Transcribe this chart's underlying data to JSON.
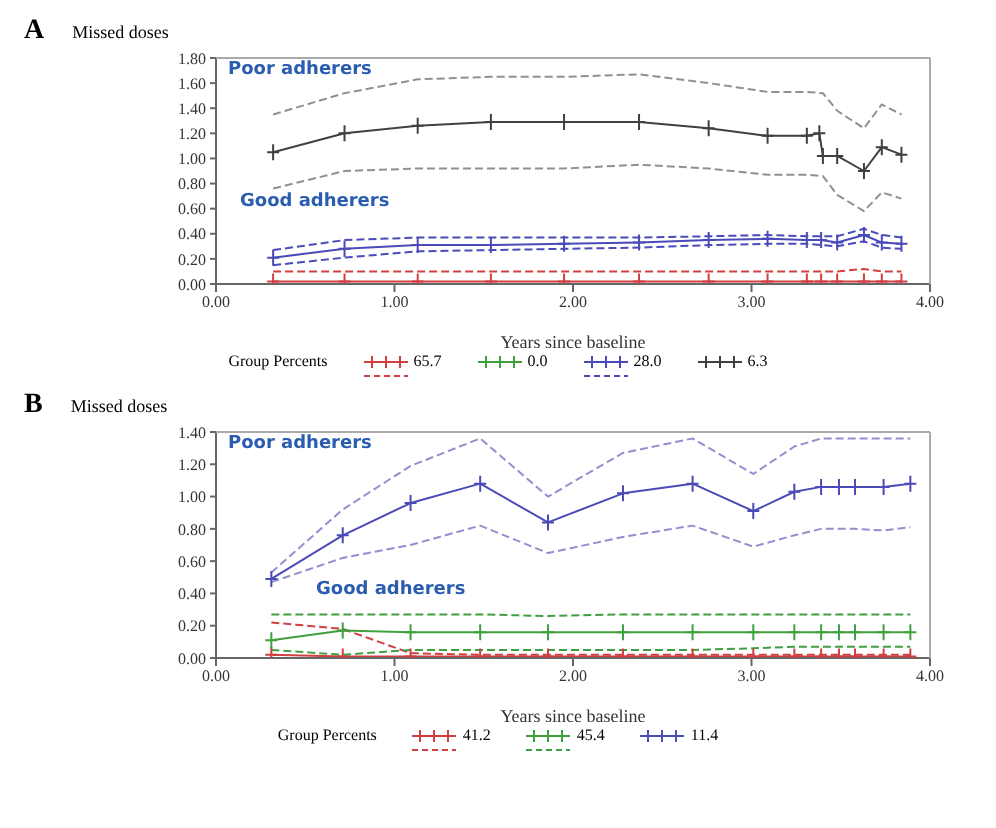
{
  "chart_data": [
    {
      "type": "line",
      "title": "A",
      "ylabel": "Missed doses",
      "xlabel": "Years since baseline",
      "legend_title": "Group Percents",
      "legend": "bottom",
      "annotations": [
        "Poor adherers",
        "Good adherers"
      ],
      "xlim": [
        0,
        4
      ],
      "xticks": [
        {
          "value": 0,
          "label": "0.00"
        },
        {
          "value": 1,
          "label": "1.00"
        },
        {
          "value": 2,
          "label": "2.00"
        },
        {
          "value": 3,
          "label": "3.00"
        },
        {
          "value": 4,
          "label": "4.00"
        }
      ],
      "ylim": [
        0,
        1.8
      ],
      "yticks": [
        {
          "value": 0,
          "label": "0.00"
        },
        {
          "value": 0.2,
          "label": "0.20"
        },
        {
          "value": 0.4,
          "label": "0.40"
        },
        {
          "value": 0.6,
          "label": "0.60"
        },
        {
          "value": 0.8,
          "label": "0.80"
        },
        {
          "value": 1,
          "label": "1.00"
        },
        {
          "value": 1.2,
          "label": "1.20"
        },
        {
          "value": 1.4,
          "label": "1.40"
        },
        {
          "value": 1.6,
          "label": "1.60"
        },
        {
          "value": 1.8,
          "label": "1.80"
        }
      ],
      "series": [
        {
          "name": "65.7",
          "color": "#d04040",
          "marker": "cross",
          "line_style": "solid",
          "x": [
            0.32,
            0.72,
            1.13,
            1.54,
            1.95,
            2.37,
            2.76,
            3.09,
            3.31,
            3.39,
            3.48,
            3.63,
            3.73,
            3.84
          ],
          "values": [
            0.02,
            0.02,
            0.02,
            0.02,
            0.02,
            0.02,
            0.02,
            0.02,
            0.02,
            0.02,
            0.02,
            0.02,
            0.02,
            0.02
          ]
        },
        {
          "color": "#d04040",
          "marker": "none",
          "line_style": "dashed",
          "x": [
            0.32,
            0.72,
            1.13,
            1.54,
            1.95,
            2.37,
            2.76,
            3.09,
            3.31,
            3.39,
            3.48,
            3.63,
            3.73,
            3.84
          ],
          "values": [
            0.1,
            0.1,
            0.1,
            0.1,
            0.1,
            0.1,
            0.1,
            0.1,
            0.1,
            0.1,
            0.1,
            0.12,
            0.1,
            0.1
          ]
        },
        {
          "name": "0.0",
          "color": "#40a040",
          "marker": "cross",
          "line_style": "solid"
        },
        {
          "name": "28.0",
          "color": "#4a4ab8",
          "marker": "cross",
          "line_style": "solid",
          "x": [
            0.32,
            0.72,
            1.13,
            1.54,
            1.95,
            2.37,
            2.76,
            3.09,
            3.31,
            3.39,
            3.48,
            3.63,
            3.73,
            3.84
          ],
          "values": [
            0.21,
            0.28,
            0.31,
            0.31,
            0.32,
            0.33,
            0.35,
            0.36,
            0.35,
            0.35,
            0.33,
            0.39,
            0.33,
            0.32
          ]
        },
        {
          "color": "#4a4ab8",
          "marker": "none",
          "line_style": "dashed",
          "x": [
            0.32,
            0.72,
            1.13,
            1.54,
            1.95,
            2.37,
            2.76,
            3.09,
            3.31,
            3.39,
            3.48,
            3.63,
            3.73,
            3.84
          ],
          "values": [
            0.27,
            0.35,
            0.37,
            0.37,
            0.37,
            0.37,
            0.38,
            0.39,
            0.38,
            0.38,
            0.38,
            0.44,
            0.39,
            0.37
          ]
        },
        {
          "color": "#4a4ab8",
          "marker": "none",
          "line_style": "dashed",
          "x": [
            0.32,
            0.72,
            1.13,
            1.54,
            1.95,
            2.37,
            2.76,
            3.09,
            3.31,
            3.39,
            3.48,
            3.63,
            3.73,
            3.84
          ],
          "values": [
            0.15,
            0.21,
            0.26,
            0.27,
            0.28,
            0.29,
            0.31,
            0.32,
            0.32,
            0.31,
            0.3,
            0.34,
            0.29,
            0.28
          ]
        },
        {
          "name": "6.3",
          "color": "#404040",
          "marker": "cross",
          "line_style": "solid",
          "x": [
            0.32,
            0.72,
            1.13,
            1.54,
            1.95,
            2.37,
            2.76,
            3.09,
            3.31,
            3.38,
            3.4,
            3.48,
            3.63,
            3.73,
            3.84
          ],
          "values": [
            1.05,
            1.2,
            1.26,
            1.29,
            1.29,
            1.29,
            1.24,
            1.18,
            1.18,
            1.2,
            1.02,
            1.02,
            0.9,
            1.09,
            1.03
          ]
        },
        {
          "color": "#909090",
          "marker": "none",
          "line_style": "dashed",
          "x": [
            0.32,
            0.72,
            1.13,
            1.54,
            1.95,
            2.37,
            2.76,
            3.09,
            3.31,
            3.4,
            3.48,
            3.63,
            3.73,
            3.84
          ],
          "values": [
            1.35,
            1.52,
            1.63,
            1.65,
            1.65,
            1.67,
            1.6,
            1.53,
            1.53,
            1.52,
            1.38,
            1.24,
            1.43,
            1.35
          ]
        },
        {
          "color": "#909090",
          "marker": "none",
          "line_style": "dashed",
          "x": [
            0.32,
            0.72,
            1.13,
            1.54,
            1.95,
            2.37,
            2.76,
            3.09,
            3.31,
            3.4,
            3.48,
            3.63,
            3.73,
            3.84
          ],
          "values": [
            0.76,
            0.9,
            0.92,
            0.92,
            0.92,
            0.95,
            0.92,
            0.87,
            0.87,
            0.86,
            0.71,
            0.58,
            0.73,
            0.68
          ]
        }
      ]
    },
    {
      "type": "line",
      "title": "B",
      "ylabel": "Missed doses",
      "xlabel": "Years since baseline",
      "legend_title": "Group Percents",
      "legend": "bottom",
      "annotations": [
        "Poor adherers",
        "Good adherers"
      ],
      "xlim": [
        0,
        4
      ],
      "xticks": [
        {
          "value": 0,
          "label": "0.00"
        },
        {
          "value": 1,
          "label": "1.00"
        },
        {
          "value": 2,
          "label": "2.00"
        },
        {
          "value": 3,
          "label": "3.00"
        },
        {
          "value": 4,
          "label": "4.00"
        }
      ],
      "ylim": [
        0,
        1.4
      ],
      "yticks": [
        {
          "value": 0,
          "label": "0.00"
        },
        {
          "value": 0.2,
          "label": "0.20"
        },
        {
          "value": 0.4,
          "label": "0.40"
        },
        {
          "value": 0.6,
          "label": "0.60"
        },
        {
          "value": 0.8,
          "label": "0.80"
        },
        {
          "value": 1,
          "label": "1.00"
        },
        {
          "value": 1.2,
          "label": "1.20"
        },
        {
          "value": 1.4,
          "label": "1.40"
        }
      ],
      "series": [
        {
          "name": "41.2",
          "color": "#d04040",
          "marker": "cross",
          "line_style": "solid",
          "x": [
            0.31,
            0.71,
            1.09,
            1.48,
            1.86,
            2.28,
            2.67,
            3.01,
            3.24,
            3.39,
            3.49,
            3.58,
            3.74,
            3.89
          ],
          "values": [
            0.02,
            0.01,
            0.01,
            0.01,
            0.01,
            0.01,
            0.01,
            0.01,
            0.01,
            0.01,
            0.01,
            0.01,
            0.01,
            0.01
          ]
        },
        {
          "color": "#d04040",
          "marker": "none",
          "line_style": "dashed",
          "x": [
            0.31,
            0.71,
            1.09,
            1.48,
            1.86,
            2.28,
            2.67,
            3.01,
            3.24,
            3.39,
            3.49,
            3.58,
            3.74,
            3.89
          ],
          "values": [
            0.22,
            0.18,
            0.03,
            0.02,
            0.02,
            0.02,
            0.02,
            0.02,
            0.02,
            0.02,
            0.02,
            0.02,
            0.02,
            0.02
          ]
        },
        {
          "name": "45.4",
          "color": "#40a040",
          "marker": "cross",
          "line_style": "solid",
          "x": [
            0.31,
            0.71,
            1.09,
            1.48,
            1.86,
            2.28,
            2.67,
            3.01,
            3.24,
            3.39,
            3.49,
            3.58,
            3.74,
            3.89
          ],
          "values": [
            0.11,
            0.17,
            0.16,
            0.16,
            0.16,
            0.16,
            0.16,
            0.16,
            0.16,
            0.16,
            0.16,
            0.16,
            0.16,
            0.16
          ]
        },
        {
          "color": "#40a040",
          "marker": "none",
          "line_style": "dashed",
          "x": [
            0.31,
            0.71,
            1.09,
            1.48,
            1.86,
            2.28,
            2.67,
            3.01,
            3.24,
            3.39,
            3.49,
            3.58,
            3.74,
            3.89
          ],
          "values": [
            0.27,
            0.27,
            0.27,
            0.27,
            0.26,
            0.27,
            0.27,
            0.27,
            0.27,
            0.27,
            0.27,
            0.27,
            0.27,
            0.27
          ]
        },
        {
          "color": "#40a040",
          "marker": "none",
          "line_style": "dashed",
          "x": [
            0.31,
            0.71,
            1.09,
            1.48,
            1.86,
            2.28,
            2.67,
            3.01,
            3.24,
            3.39,
            3.49,
            3.58,
            3.74,
            3.89
          ],
          "values": [
            0.05,
            0.02,
            0.05,
            0.05,
            0.05,
            0.05,
            0.05,
            0.06,
            0.07,
            0.07,
            0.07,
            0.07,
            0.07,
            0.07
          ]
        },
        {
          "name": "11.4",
          "color": "#4a4ab8",
          "marker": "cross",
          "line_style": "solid",
          "x": [
            0.31,
            0.71,
            1.09,
            1.48,
            1.86,
            2.28,
            2.67,
            3.01,
            3.24,
            3.39,
            3.49,
            3.58,
            3.74,
            3.89
          ],
          "values": [
            0.49,
            0.76,
            0.96,
            1.08,
            0.84,
            1.02,
            1.08,
            0.91,
            1.03,
            1.06,
            1.06,
            1.06,
            1.06,
            1.08
          ]
        },
        {
          "color": "#9090d0",
          "marker": "none",
          "line_style": "dashed",
          "x": [
            0.31,
            0.71,
            1.09,
            1.48,
            1.86,
            2.28,
            2.67,
            3.01,
            3.24,
            3.39,
            3.49,
            3.58,
            3.74,
            3.89
          ],
          "values": [
            0.53,
            0.92,
            1.19,
            1.36,
            1,
            1.27,
            1.36,
            1.14,
            1.31,
            1.36,
            1.36,
            1.36,
            1.36,
            1.36
          ]
        },
        {
          "color": "#9090d0",
          "marker": "none",
          "line_style": "dashed",
          "x": [
            0.31,
            0.71,
            1.09,
            1.48,
            1.86,
            2.28,
            2.67,
            3.01,
            3.24,
            3.39,
            3.49,
            3.58,
            3.74,
            3.89
          ],
          "values": [
            0.47,
            0.62,
            0.7,
            0.82,
            0.65,
            0.75,
            0.82,
            0.69,
            0.76,
            0.8,
            0.8,
            0.8,
            0.79,
            0.81
          ]
        }
      ]
    }
  ]
}
